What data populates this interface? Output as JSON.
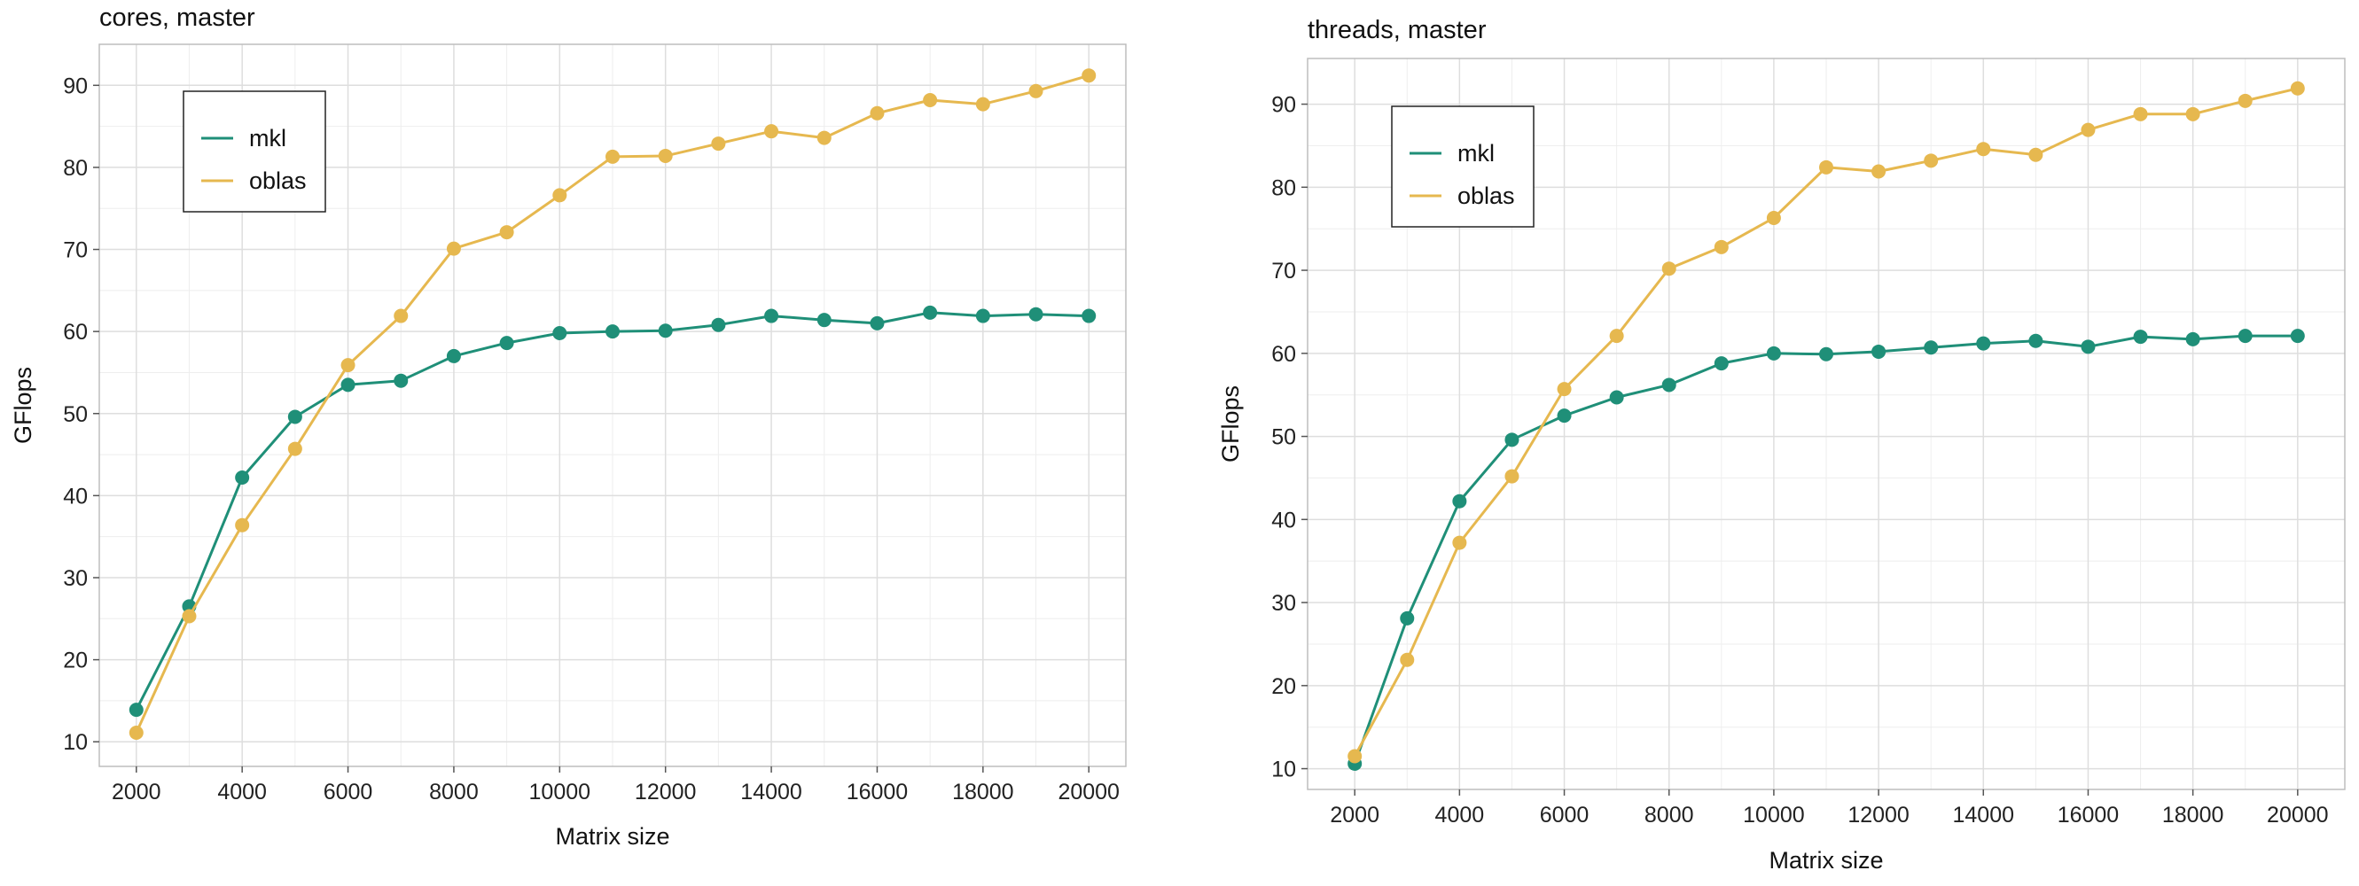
{
  "colors": {
    "mkl": "#1f8f78",
    "oblas": "#e6b84f",
    "grid_major": "#dedede",
    "grid_minor": "#eeeeee",
    "frame": "#bdbdbd"
  },
  "chart_data": [
    {
      "type": "line",
      "title": "cores, master",
      "xlabel": "Matrix size",
      "ylabel": "GFlops",
      "xlim": [
        1300,
        20700
      ],
      "ylim": [
        7,
        95
      ],
      "xticks": [
        2000,
        4000,
        6000,
        8000,
        10000,
        12000,
        14000,
        16000,
        18000,
        20000
      ],
      "xtick_labels": [
        "2000",
        "4000",
        "6000",
        "8000",
        "10000",
        "12000",
        "14000",
        "16000",
        "18000",
        "20000"
      ],
      "yticks": [
        10,
        20,
        30,
        40,
        50,
        60,
        70,
        80,
        90
      ],
      "ytick_labels": [
        "10",
        "20",
        "30",
        "40",
        "50",
        "60",
        "70",
        "80",
        "90"
      ],
      "grid": true,
      "legend_position": "top-left",
      "x": [
        2000,
        3000,
        4000,
        5000,
        6000,
        7000,
        8000,
        9000,
        10000,
        11000,
        12000,
        13000,
        14000,
        15000,
        16000,
        17000,
        18000,
        19000,
        20000
      ],
      "series": [
        {
          "name": "mkl",
          "values": [
            13.9,
            26.5,
            42.2,
            49.6,
            53.5,
            54.0,
            57.0,
            58.6,
            59.8,
            60.0,
            60.1,
            60.8,
            61.9,
            61.4,
            61.0,
            62.3,
            61.9,
            62.1,
            61.9
          ]
        },
        {
          "name": "oblas",
          "values": [
            11.1,
            25.3,
            36.4,
            45.7,
            55.9,
            61.9,
            70.1,
            72.1,
            76.6,
            81.3,
            81.4,
            82.9,
            84.4,
            83.6,
            86.6,
            88.2,
            87.7,
            89.3,
            91.2
          ]
        }
      ]
    },
    {
      "type": "line",
      "title": "threads, master",
      "xlabel": "Matrix size",
      "ylabel": "GFlops",
      "xlim": [
        1100,
        20900
      ],
      "ylim": [
        7.5,
        95.5
      ],
      "xticks": [
        2000,
        4000,
        6000,
        8000,
        10000,
        12000,
        14000,
        16000,
        18000,
        20000
      ],
      "xtick_labels": [
        "2000",
        "4000",
        "6000",
        "8000",
        "10000",
        "12000",
        "14000",
        "16000",
        "18000",
        "20000"
      ],
      "yticks": [
        10,
        20,
        30,
        40,
        50,
        60,
        70,
        80,
        90
      ],
      "ytick_labels": [
        "10",
        "20",
        "30",
        "40",
        "50",
        "60",
        "70",
        "80",
        "90"
      ],
      "grid": true,
      "legend_position": "top-left",
      "x": [
        2000,
        3000,
        4000,
        5000,
        6000,
        7000,
        8000,
        9000,
        10000,
        11000,
        12000,
        13000,
        14000,
        15000,
        16000,
        17000,
        18000,
        19000,
        20000
      ],
      "series": [
        {
          "name": "mkl",
          "values": [
            10.6,
            28.1,
            42.2,
            49.6,
            52.5,
            54.7,
            56.2,
            58.8,
            60.0,
            59.9,
            60.2,
            60.7,
            61.2,
            61.5,
            60.8,
            62.0,
            61.7,
            62.1,
            62.1
          ]
        },
        {
          "name": "oblas",
          "values": [
            11.5,
            23.1,
            37.2,
            45.2,
            55.7,
            62.1,
            70.2,
            72.8,
            76.3,
            82.4,
            81.9,
            83.2,
            84.6,
            83.9,
            86.9,
            88.8,
            88.8,
            90.4,
            91.9
          ]
        }
      ]
    }
  ]
}
